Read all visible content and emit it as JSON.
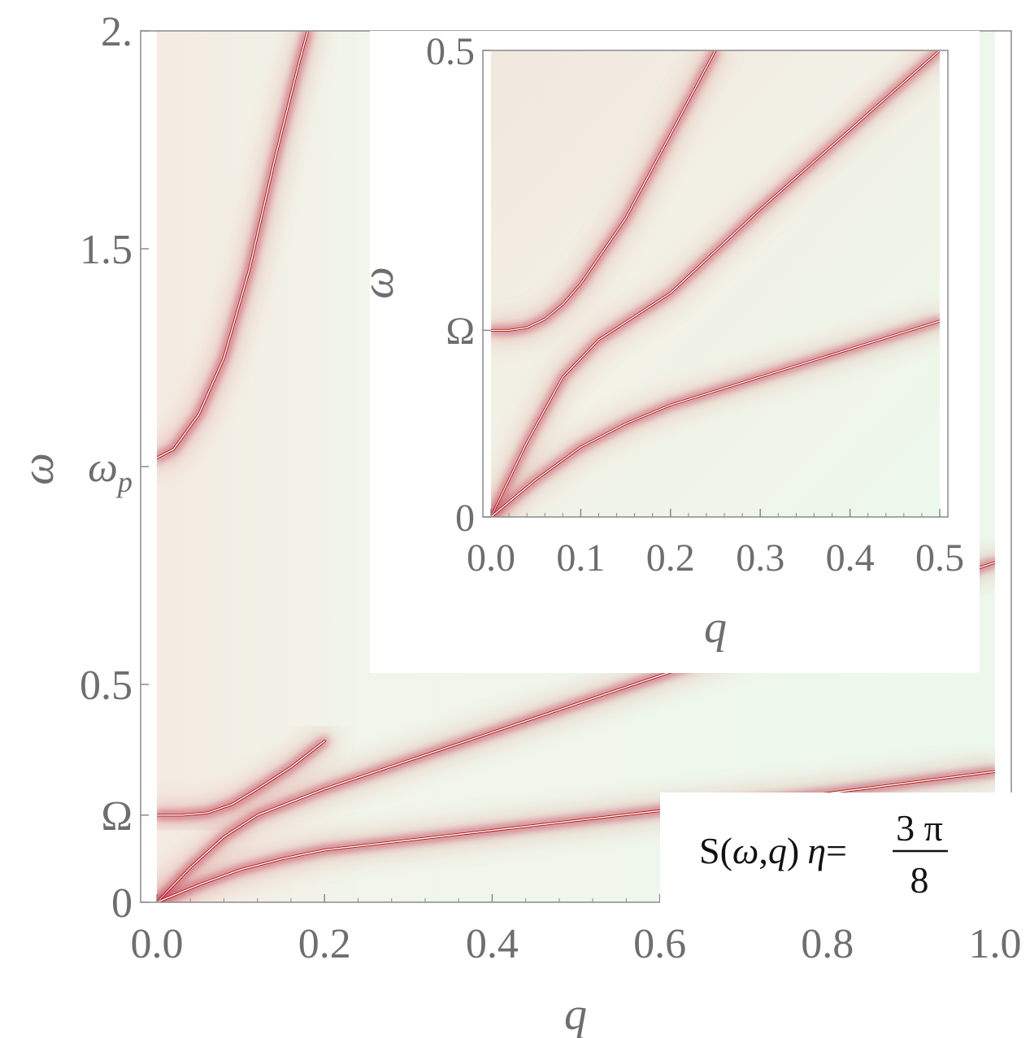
{
  "chart_data": [
    {
      "type": "heatmap",
      "quantity": "S(ω,q)",
      "xlabel": "q",
      "ylabel": "ω",
      "xlim": [
        0,
        1.0
      ],
      "ylim": [
        0,
        2.0
      ],
      "x_ticks": [
        "0.0",
        "0.2",
        "0.4",
        "0.6",
        "0.8",
        "1.0"
      ],
      "x_tick_values": [
        0,
        0.2,
        0.4,
        0.6,
        0.8,
        1.0
      ],
      "y_ticks": [
        "0",
        "Ω",
        "0.5",
        "ω",
        "p",
        "1.5",
        "2."
      ],
      "y_tick_items": [
        {
          "value": 0,
          "label": "0"
        },
        {
          "value": 0.2,
          "label": "Ω"
        },
        {
          "value": 0.5,
          "label": "0.5"
        },
        {
          "value": 1.0,
          "label": "ω",
          "sub": "p"
        },
        {
          "value": 1.5,
          "label": "1.5"
        },
        {
          "value": 2.0,
          "label": "2."
        }
      ],
      "legend": {
        "prefix": "S(",
        "w": "ω",
        "comma": ",",
        "q": "q",
        "close": ")",
        "eta": "η",
        "eq": "=",
        "num": "3 π",
        "den": "8"
      },
      "colors": {
        "background": "#eef8ec",
        "peak": "#b0121b",
        "core": "#ffffff"
      },
      "series": [
        {
          "q": [
            0.0,
            0.02,
            0.05,
            0.08,
            0.11,
            0.14,
            0.17,
            0.18
          ],
          "omega": [
            1.02,
            1.04,
            1.12,
            1.25,
            1.45,
            1.7,
            1.93,
            2.0
          ]
        },
        {
          "q": [
            0.0,
            0.03,
            0.06,
            0.09,
            0.12,
            0.16,
            0.2
          ],
          "omega": [
            0.2,
            0.2,
            0.205,
            0.225,
            0.26,
            0.31,
            0.37
          ]
        },
        {
          "q": [
            0.0,
            0.04,
            0.08,
            0.12,
            0.2,
            0.4,
            0.6,
            0.8,
            1.0
          ],
          "omega": [
            0.0,
            0.08,
            0.15,
            0.2,
            0.26,
            0.39,
            0.52,
            0.65,
            0.78
          ]
        },
        {
          "q": [
            0.0,
            0.05,
            0.1,
            0.15,
            0.2,
            0.4,
            0.6,
            0.8,
            1.0
          ],
          "omega": [
            0.0,
            0.04,
            0.075,
            0.1,
            0.12,
            0.165,
            0.21,
            0.25,
            0.3
          ]
        }
      ]
    },
    {
      "type": "heatmap",
      "quantity": "S(ω,q)",
      "xlabel": "q",
      "ylabel": "ω",
      "xlim": [
        0,
        0.5
      ],
      "ylim": [
        0,
        0.5
      ],
      "x_ticks": [
        "0.0",
        "0.1",
        "0.2",
        "0.3",
        "0.4",
        "0.5"
      ],
      "x_tick_values": [
        0,
        0.1,
        0.2,
        0.3,
        0.4,
        0.5
      ],
      "y_ticks": [
        "0",
        "Ω",
        "0.5"
      ],
      "y_tick_items": [
        {
          "value": 0,
          "label": "0"
        },
        {
          "value": 0.2,
          "label": "Ω"
        },
        {
          "value": 0.5,
          "label": "0.5"
        }
      ],
      "series": [
        {
          "q": [
            0.0,
            0.02,
            0.04,
            0.06,
            0.08,
            0.1,
            0.15,
            0.2,
            0.25
          ],
          "omega": [
            0.2,
            0.2,
            0.203,
            0.212,
            0.228,
            0.25,
            0.32,
            0.41,
            0.5
          ]
        },
        {
          "q": [
            0.0,
            0.04,
            0.08,
            0.12,
            0.16,
            0.2,
            0.3,
            0.4,
            0.5
          ],
          "omega": [
            0.0,
            0.08,
            0.15,
            0.19,
            0.215,
            0.24,
            0.33,
            0.415,
            0.5
          ]
        },
        {
          "q": [
            0.0,
            0.05,
            0.1,
            0.15,
            0.2,
            0.3,
            0.4,
            0.5
          ],
          "omega": [
            0.0,
            0.04,
            0.075,
            0.1,
            0.12,
            0.15,
            0.18,
            0.21
          ]
        }
      ]
    }
  ]
}
